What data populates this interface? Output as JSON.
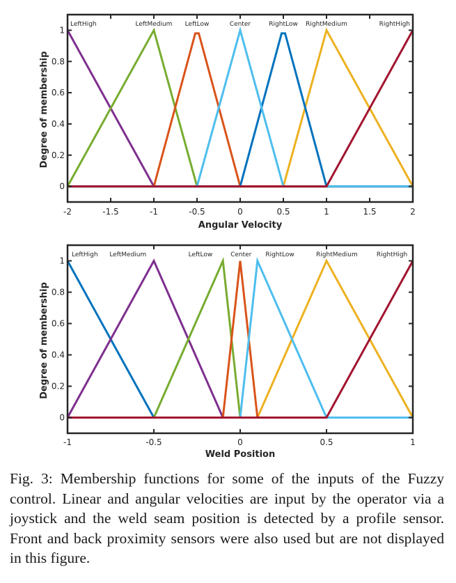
{
  "chart_data": [
    {
      "type": "line",
      "title": "",
      "xlabel": "Angular Velocity",
      "ylabel": "Degree of membership",
      "xlim": [
        -2,
        2
      ],
      "ylim": [
        -0.1,
        1.1
      ],
      "xticks": [
        -2,
        -1.5,
        -1,
        -0.5,
        0,
        0.5,
        1,
        1.5,
        2
      ],
      "xtick_labels": [
        "-2",
        "-1.5",
        "-1",
        "-0.5",
        "0",
        "0.5",
        "1",
        "1.5",
        "2"
      ],
      "yticks": [
        0,
        0.2,
        0.4,
        0.6,
        0.8,
        1
      ],
      "ytick_labels": [
        "0",
        "0.2",
        "0.4",
        "0.6",
        "0.8",
        "1"
      ],
      "grid": false,
      "legend": "labels at top inside plot",
      "series": [
        {
          "name": "LeftHigh",
          "color": "#7E2F8E",
          "label_x": -2,
          "label_anchor": "start",
          "x": [
            -2,
            -1,
            2
          ],
          "y": [
            1,
            0,
            0
          ]
        },
        {
          "name": "LeftMedium",
          "color": "#77AC30",
          "label_x": -1,
          "label_anchor": "middle",
          "x": [
            -2,
            -1,
            -0.5,
            2
          ],
          "y": [
            0,
            1,
            0,
            0
          ]
        },
        {
          "name": "LeftLow",
          "color": "#D95319",
          "label_x": -0.5,
          "label_anchor": "middle",
          "x": [
            -2,
            -1,
            -0.52,
            -0.48,
            0,
            2
          ],
          "y": [
            0,
            0,
            0.98,
            0.98,
            0,
            0
          ]
        },
        {
          "name": "Center",
          "color": "#4DBEEE",
          "label_x": 0,
          "label_anchor": "middle",
          "x": [
            -2,
            -0.5,
            0,
            0.5,
            2
          ],
          "y": [
            0,
            0,
            1,
            0,
            0
          ]
        },
        {
          "name": "RightLow",
          "color": "#0072BD",
          "label_x": 0.5,
          "label_anchor": "middle",
          "x": [
            -2,
            0,
            0.48,
            0.52,
            1,
            2
          ],
          "y": [
            0,
            0,
            0.98,
            0.98,
            0,
            0
          ]
        },
        {
          "name": "RightMedium",
          "color": "#EDB120",
          "label_x": 1,
          "label_anchor": "middle",
          "x": [
            -2,
            0.5,
            1,
            2
          ],
          "y": [
            0,
            0,
            1,
            0
          ]
        },
        {
          "name": "RightHigh",
          "color": "#A2142F",
          "label_x": 2,
          "label_anchor": "end",
          "x": [
            -2,
            1,
            2
          ],
          "y": [
            0,
            0,
            1
          ]
        }
      ],
      "draw_order": [
        "RightMedium",
        "LeftHigh",
        "LeftMedium",
        "LeftLow",
        "RightLow",
        "Center",
        "RightHigh"
      ]
    },
    {
      "type": "line",
      "title": "",
      "xlabel": "Weld Position",
      "ylabel": "Degree of membership",
      "xlim": [
        -1,
        1
      ],
      "ylim": [
        -0.1,
        1.1
      ],
      "xticks": [
        -1,
        -0.5,
        0,
        0.5,
        1
      ],
      "xtick_labels": [
        "-1",
        "-0.5",
        "0",
        "0.5",
        "1"
      ],
      "yticks": [
        0,
        0.2,
        0.4,
        0.6,
        0.8,
        1
      ],
      "ytick_labels": [
        "0",
        "0.2",
        "0.4",
        "0.6",
        "0.8",
        "1"
      ],
      "grid": false,
      "legend": "labels at top inside plot",
      "series": [
        {
          "name": "LeftHigh",
          "color": "#0072BD",
          "label_x": -0.9,
          "label_anchor": "middle",
          "x": [
            -1,
            -0.5,
            1
          ],
          "y": [
            1,
            0,
            0
          ]
        },
        {
          "name": "LeftMedium",
          "color": "#7E2F8E",
          "label_x": -0.65,
          "label_anchor": "middle",
          "x": [
            -1,
            -0.5,
            -0.1,
            1
          ],
          "y": [
            0,
            1,
            0,
            0
          ]
        },
        {
          "name": "LeftLow",
          "color": "#77AC30",
          "label_x": -0.23,
          "label_anchor": "middle",
          "x": [
            -1,
            -0.5,
            -0.1,
            0,
            1
          ],
          "y": [
            0,
            0,
            1,
            0,
            0
          ]
        },
        {
          "name": "Center",
          "color": "#D95319",
          "label_x": 0.005,
          "label_anchor": "middle",
          "x": [
            -1,
            -0.1,
            0,
            0.1,
            1
          ],
          "y": [
            0,
            0,
            1,
            0,
            0
          ]
        },
        {
          "name": "RightLow",
          "color": "#4DBEEE",
          "label_x": 0.23,
          "label_anchor": "middle",
          "x": [
            -1,
            0,
            0.1,
            0.5,
            1
          ],
          "y": [
            0,
            0,
            1,
            0,
            0
          ]
        },
        {
          "name": "RightMedium",
          "color": "#EDB120",
          "label_x": 0.56,
          "label_anchor": "middle",
          "x": [
            -1,
            0.1,
            0.5,
            1
          ],
          "y": [
            0,
            0,
            1,
            0
          ]
        },
        {
          "name": "RightHigh",
          "color": "#A2142F",
          "label_x": 0.985,
          "label_anchor": "end",
          "x": [
            -1,
            0.5,
            1
          ],
          "y": [
            0,
            0,
            1
          ]
        }
      ],
      "draw_order": [
        "RightMedium",
        "LeftHigh",
        "LeftMedium",
        "LeftLow",
        "Center",
        "RightLow",
        "RightHigh"
      ]
    }
  ],
  "caption": "Fig. 3: Membership functions for some of the inputs of the Fuzzy control. Linear and angular velocities are input by the operator via a joystick and the weld seam position is detected by a profile sensor. Front and back proximity sensors were also used but are not displayed in this figure."
}
